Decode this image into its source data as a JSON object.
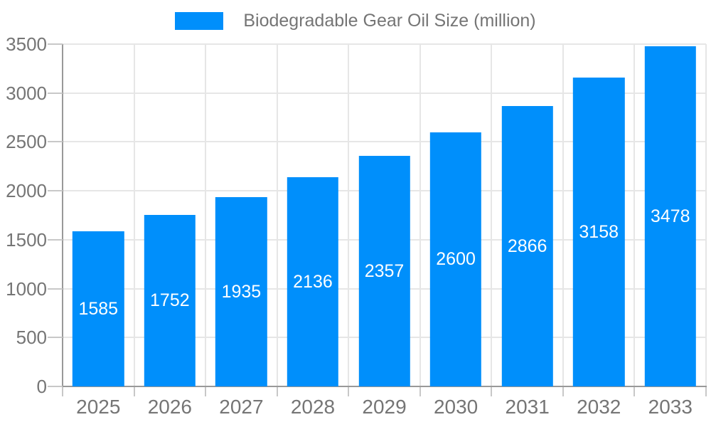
{
  "legend": {
    "label": "Biodegradable Gear Oil Size (million)"
  },
  "chart_data": {
    "type": "bar",
    "title": "Biodegradable Gear Oil Size (million)",
    "categories": [
      "2025",
      "2026",
      "2027",
      "2028",
      "2029",
      "2030",
      "2031",
      "2032",
      "2033"
    ],
    "values": [
      1585,
      1752,
      1935,
      2136,
      2357,
      2600,
      2866,
      3158,
      3478
    ],
    "series": [
      {
        "name": "Biodegradable Gear Oil Size (million)",
        "values": [
          1585,
          1752,
          1935,
          2136,
          2357,
          2600,
          2866,
          3158,
          3478
        ]
      }
    ],
    "xlabel": "",
    "ylabel": "",
    "ylim": [
      0,
      3500
    ],
    "y_ticks": [
      0,
      500,
      1000,
      1500,
      2000,
      2500,
      3000,
      3500
    ],
    "grid": "both",
    "legend_position": "top-center",
    "value_labels": "inside-center",
    "colors": {
      "bar": "#008ffb",
      "value_text": "#ffffff",
      "axis_text": "#757575",
      "grid_line": "#e6e6e6",
      "axis_line": "#999999",
      "tick_line": "#c8c8c8",
      "background": "#ffffff"
    }
  }
}
